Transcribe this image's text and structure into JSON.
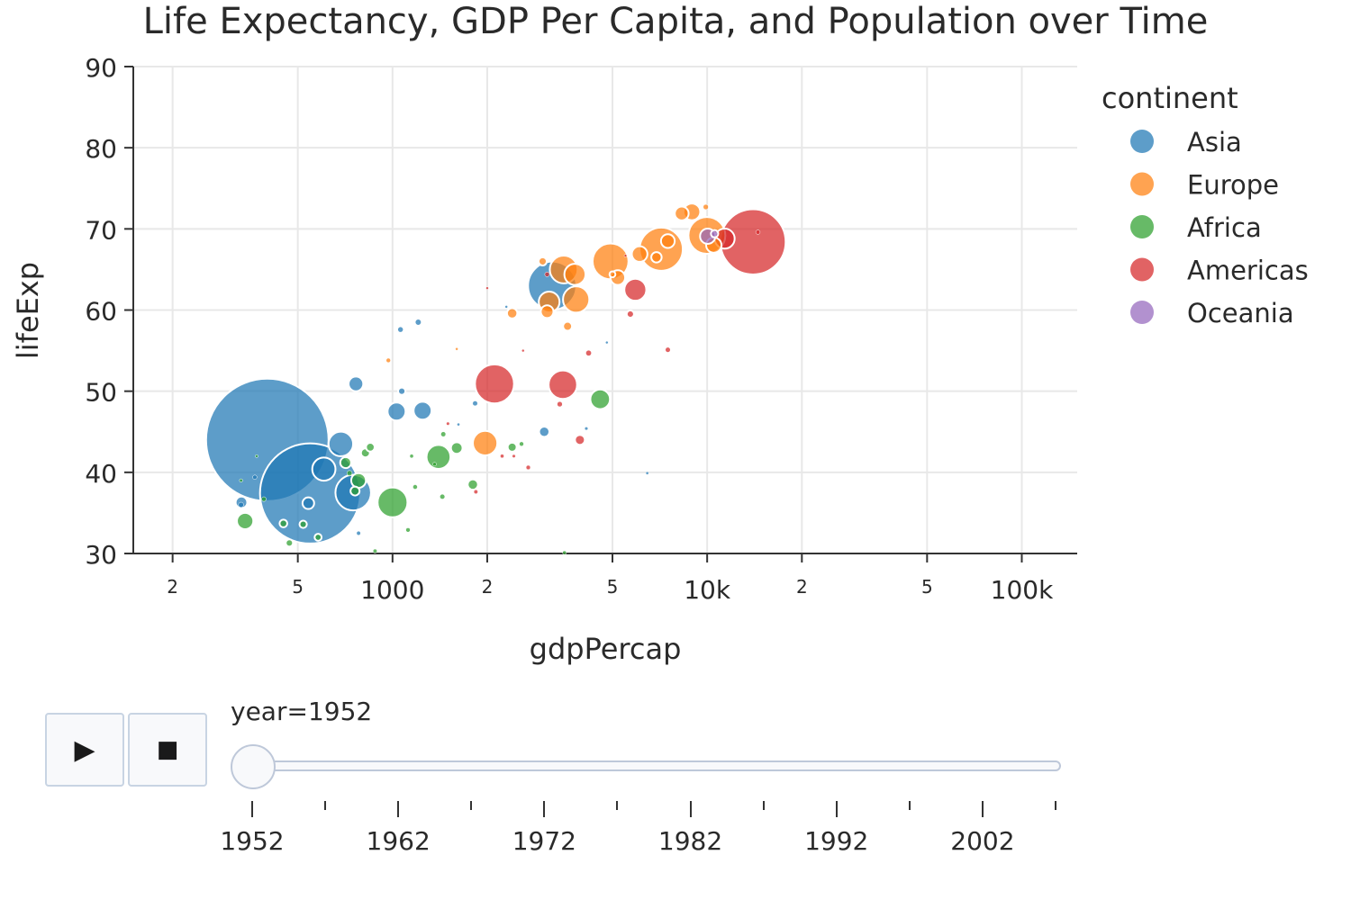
{
  "chart_data": {
    "type": "scatter",
    "title": "Life Expectancy, GDP Per Capita, and Population over Time",
    "xlabel": "gdpPercap",
    "ylabel": "lifeExp",
    "x_scale": "log",
    "xlim": [
      150,
      150000
    ],
    "ylim": [
      30,
      90
    ],
    "y_ticks": [
      30,
      40,
      50,
      60,
      70,
      80,
      90
    ],
    "x_ticks_major": [
      {
        "value": 1000,
        "label": "1000"
      },
      {
        "value": 10000,
        "label": "10k"
      },
      {
        "value": 100000,
        "label": "100k"
      }
    ],
    "x_ticks_minor": [
      {
        "value": 200,
        "label": "2"
      },
      {
        "value": 500,
        "label": "5"
      },
      {
        "value": 2000,
        "label": "2"
      },
      {
        "value": 5000,
        "label": "5"
      },
      {
        "value": 20000,
        "label": "2"
      },
      {
        "value": 50000,
        "label": "5"
      }
    ],
    "grid": true,
    "legend_title": "continent",
    "legend_position": "top-right",
    "size_variable": "pop",
    "series": [
      {
        "name": "Asia",
        "color": "#1f77b4",
        "points": [
          {
            "x": 400,
            "y": 44.0,
            "pop": 556000000
          },
          {
            "x": 547,
            "y": 37.4,
            "pop": 372000000
          },
          {
            "x": 750,
            "y": 37.5,
            "pop": 46900000
          },
          {
            "x": 3217,
            "y": 63.0,
            "pop": 86500000
          },
          {
            "x": 685,
            "y": 43.5,
            "pop": 22400000
          },
          {
            "x": 605,
            "y": 40.4,
            "pop": 20000000
          },
          {
            "x": 1246,
            "y": 47.6,
            "pop": 12000000
          },
          {
            "x": 1030,
            "y": 47.5,
            "pop": 12000000
          },
          {
            "x": 765,
            "y": 50.9,
            "pop": 8000000
          },
          {
            "x": 540,
            "y": 36.2,
            "pop": 5000000
          },
          {
            "x": 331,
            "y": 36.3,
            "pop": 5000000
          },
          {
            "x": 3035,
            "y": 45.0,
            "pop": 4000000
          },
          {
            "x": 1070,
            "y": 50.0,
            "pop": 2000000
          },
          {
            "x": 1207,
            "y": 58.5,
            "pop": 1900000
          },
          {
            "x": 1060,
            "y": 57.6,
            "pop": 1700000
          },
          {
            "x": 1830,
            "y": 48.5,
            "pop": 900000
          },
          {
            "x": 4130,
            "y": 45.4,
            "pop": 400000
          },
          {
            "x": 6450,
            "y": 39.9,
            "pop": 300000
          },
          {
            "x": 780,
            "y": 32.5,
            "pop": 600000
          },
          {
            "x": 1620,
            "y": 45.9,
            "pop": 300000
          },
          {
            "x": 330,
            "y": 36.0,
            "pop": 1000000
          },
          {
            "x": 365,
            "y": 39.4,
            "pop": 700000
          },
          {
            "x": 4800,
            "y": 56.0,
            "pop": 50000
          },
          {
            "x": 2300,
            "y": 60.4,
            "pop": 30000
          }
        ]
      },
      {
        "name": "Europe",
        "color": "#ff7f0e",
        "points": [
          {
            "x": 7144,
            "y": 67.5,
            "pop": 69100000
          },
          {
            "x": 9980,
            "y": 69.2,
            "pop": 50400000
          },
          {
            "x": 4931,
            "y": 66.0,
            "pop": 47700000
          },
          {
            "x": 3500,
            "y": 65.0,
            "pop": 28600000
          },
          {
            "x": 3834,
            "y": 61.3,
            "pop": 25700000
          },
          {
            "x": 1969,
            "y": 43.6,
            "pop": 22200000
          },
          {
            "x": 3800,
            "y": 64.4,
            "pop": 16600000
          },
          {
            "x": 3146,
            "y": 61.0,
            "pop": 16000000
          },
          {
            "x": 8942,
            "y": 72.1,
            "pop": 10400000
          },
          {
            "x": 10500,
            "y": 68.0,
            "pop": 8700000
          },
          {
            "x": 6100,
            "y": 66.9,
            "pop": 9000000
          },
          {
            "x": 5200,
            "y": 64.0,
            "pop": 8000000
          },
          {
            "x": 7500,
            "y": 68.5,
            "pop": 7000000
          },
          {
            "x": 8300,
            "y": 71.9,
            "pop": 7100000
          },
          {
            "x": 3100,
            "y": 59.8,
            "pop": 6000000
          },
          {
            "x": 2400,
            "y": 59.6,
            "pop": 4000000
          },
          {
            "x": 6900,
            "y": 66.5,
            "pop": 4000000
          },
          {
            "x": 3600,
            "y": 58.0,
            "pop": 3000000
          },
          {
            "x": 3000,
            "y": 66.0,
            "pop": 2500000
          },
          {
            "x": 5000,
            "y": 64.4,
            "pop": 1300000
          },
          {
            "x": 9900,
            "y": 72.7,
            "pop": 1000000
          },
          {
            "x": 970,
            "y": 53.8,
            "pop": 700000
          },
          {
            "x": 1600,
            "y": 55.2,
            "pop": 200000
          }
        ]
      },
      {
        "name": "Africa",
        "color": "#2ca02c",
        "points": [
          {
            "x": 1000,
            "y": 36.3,
            "pop": 33100000
          },
          {
            "x": 1400,
            "y": 41.9,
            "pop": 21300000
          },
          {
            "x": 4570,
            "y": 49.0,
            "pop": 14300000
          },
          {
            "x": 340,
            "y": 34.0,
            "pop": 10000000
          },
          {
            "x": 780,
            "y": 39.0,
            "pop": 8000000
          },
          {
            "x": 1600,
            "y": 43.0,
            "pop": 5000000
          },
          {
            "x": 1800,
            "y": 38.5,
            "pop": 4000000
          },
          {
            "x": 2400,
            "y": 43.1,
            "pop": 3000000
          },
          {
            "x": 710,
            "y": 41.2,
            "pop": 4500000
          },
          {
            "x": 850,
            "y": 43.1,
            "pop": 2800000
          },
          {
            "x": 760,
            "y": 37.7,
            "pop": 3000000
          },
          {
            "x": 820,
            "y": 42.4,
            "pop": 3000000
          },
          {
            "x": 450,
            "y": 33.7,
            "pop": 2200000
          },
          {
            "x": 520,
            "y": 33.6,
            "pop": 2000000
          },
          {
            "x": 470,
            "y": 31.3,
            "pop": 2000000
          },
          {
            "x": 580,
            "y": 32.0,
            "pop": 1800000
          },
          {
            "x": 1440,
            "y": 37.0,
            "pop": 1500000
          },
          {
            "x": 1180,
            "y": 38.2,
            "pop": 1300000
          },
          {
            "x": 1450,
            "y": 44.7,
            "pop": 900000
          },
          {
            "x": 730,
            "y": 39.9,
            "pop": 1000000
          },
          {
            "x": 880,
            "y": 30.3,
            "pop": 600000
          },
          {
            "x": 3520,
            "y": 30.1,
            "pop": 500000
          },
          {
            "x": 1120,
            "y": 32.9,
            "pop": 700000
          },
          {
            "x": 1150,
            "y": 42.0,
            "pop": 500000
          },
          {
            "x": 330,
            "y": 39.0,
            "pop": 400000
          },
          {
            "x": 390,
            "y": 36.7,
            "pop": 800000
          },
          {
            "x": 2570,
            "y": 43.5,
            "pop": 700000
          },
          {
            "x": 370,
            "y": 42.0,
            "pop": 300000
          },
          {
            "x": 1360,
            "y": 41.0,
            "pop": 500000
          }
        ]
      },
      {
        "name": "Americas",
        "color": "#d62728",
        "points": [
          {
            "x": 13990,
            "y": 68.4,
            "pop": 157600000
          },
          {
            "x": 2109,
            "y": 50.9,
            "pop": 56600000
          },
          {
            "x": 3478,
            "y": 50.8,
            "pop": 30100000
          },
          {
            "x": 11367,
            "y": 68.8,
            "pop": 14800000
          },
          {
            "x": 5911,
            "y": 62.5,
            "pop": 17900000
          },
          {
            "x": 3940,
            "y": 44.0,
            "pop": 3700000
          },
          {
            "x": 5700,
            "y": 59.5,
            "pop": 2000000
          },
          {
            "x": 4200,
            "y": 54.7,
            "pop": 1800000
          },
          {
            "x": 7500,
            "y": 55.1,
            "pop": 1500000
          },
          {
            "x": 3400,
            "y": 48.4,
            "pop": 1000000
          },
          {
            "x": 2700,
            "y": 40.6,
            "pop": 700000
          },
          {
            "x": 1840,
            "y": 37.6,
            "pop": 600000
          },
          {
            "x": 2230,
            "y": 42.0,
            "pop": 500000
          },
          {
            "x": 2430,
            "y": 42.0,
            "pop": 400000
          },
          {
            "x": 1500,
            "y": 46.0,
            "pop": 400000
          },
          {
            "x": 3100,
            "y": 64.4,
            "pop": 800000
          },
          {
            "x": 14500,
            "y": 69.6,
            "pop": 700000
          },
          {
            "x": 2000,
            "y": 62.7,
            "pop": 200000
          },
          {
            "x": 2600,
            "y": 55.0,
            "pop": 100000
          },
          {
            "x": 5500,
            "y": 66.7,
            "pop": 100000
          }
        ]
      },
      {
        "name": "Oceania",
        "color": "#9467bd",
        "points": [
          {
            "x": 10040,
            "y": 69.1,
            "pop": 8700000
          },
          {
            "x": 10557,
            "y": 69.4,
            "pop": 1990000
          }
        ]
      }
    ]
  },
  "slider": {
    "label_prefix": "year=",
    "current": "1952",
    "ticks": [
      "1952",
      "1962",
      "1972",
      "1982",
      "1992",
      "2002"
    ],
    "all_years": [
      1952,
      1957,
      1962,
      1967,
      1972,
      1977,
      1982,
      1987,
      1992,
      1997,
      2002,
      2007
    ]
  },
  "controls": {
    "play_icon": "▶",
    "stop_icon": "■"
  }
}
